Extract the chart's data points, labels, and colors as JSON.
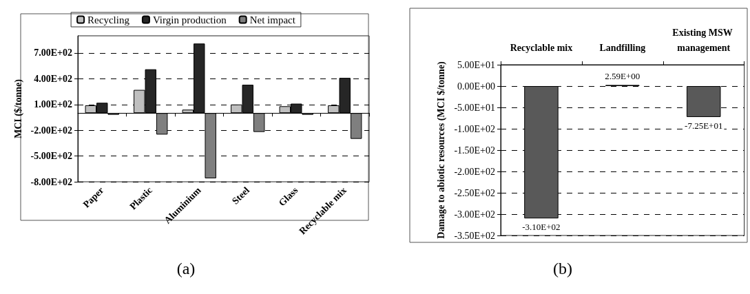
{
  "chart_data": [
    {
      "type": "bar",
      "categories": [
        "Paper",
        "Plastic",
        "Aluminium",
        "Steel",
        "Glass",
        "Recyclable mix"
      ],
      "ylabel": "MCI ($/tonne)",
      "ylim": [
        -800,
        900
      ],
      "yticks": [
        {
          "value": -800,
          "label": "-8.00E+02"
        },
        {
          "value": -500,
          "label": "-5.00E+02"
        },
        {
          "value": -200,
          "label": "-2.00E+02"
        },
        {
          "value": 100,
          "label": "1.00E+02"
        },
        {
          "value": 400,
          "label": "4.00E+02"
        },
        {
          "value": 700,
          "label": "7.00E+02"
        }
      ],
      "series": [
        {
          "name": "Recycling",
          "color": "#bfbfbf",
          "values": [
            90,
            270,
            40,
            100,
            80,
            90
          ]
        },
        {
          "name": "Virgin production",
          "color": "#262626",
          "values": [
            120,
            510,
            810,
            330,
            110,
            410
          ]
        },
        {
          "name": "Net impact",
          "color": "#7f7f7f",
          "values": [
            -20,
            -250,
            -760,
            -220,
            -20,
            -300
          ]
        }
      ],
      "legend": "top",
      "grid": "y",
      "annotations": [
        "(a)"
      ]
    },
    {
      "type": "bar",
      "categories": [
        "Recyclable mix",
        "Landfilling",
        "Existing MSW management"
      ],
      "ylabel": "Damage to abiotic resources (MCI $/tonne)",
      "ylim": [
        -350,
        50
      ],
      "yticks": [
        {
          "value": -350,
          "label": "-3.50E+02"
        },
        {
          "value": -300,
          "label": "-3.00E+02"
        },
        {
          "value": -250,
          "label": "-2.50E+02"
        },
        {
          "value": -200,
          "label": "-2.00E+02"
        },
        {
          "value": -150,
          "label": "-1.50E+02"
        },
        {
          "value": -100,
          "label": "-1.00E+02"
        },
        {
          "value": -50,
          "label": "-5.00E+01"
        },
        {
          "value": 0,
          "label": "0.00E+00"
        },
        {
          "value": 50,
          "label": "5.00E+01"
        }
      ],
      "values": [
        -310,
        2.59,
        -72.5
      ],
      "value_labels": [
        "-3.10E+02",
        "2.59E+00",
        "-7.25E+01"
      ],
      "color": "#595959",
      "grid": "y",
      "annotations": [
        "(b)"
      ]
    }
  ]
}
